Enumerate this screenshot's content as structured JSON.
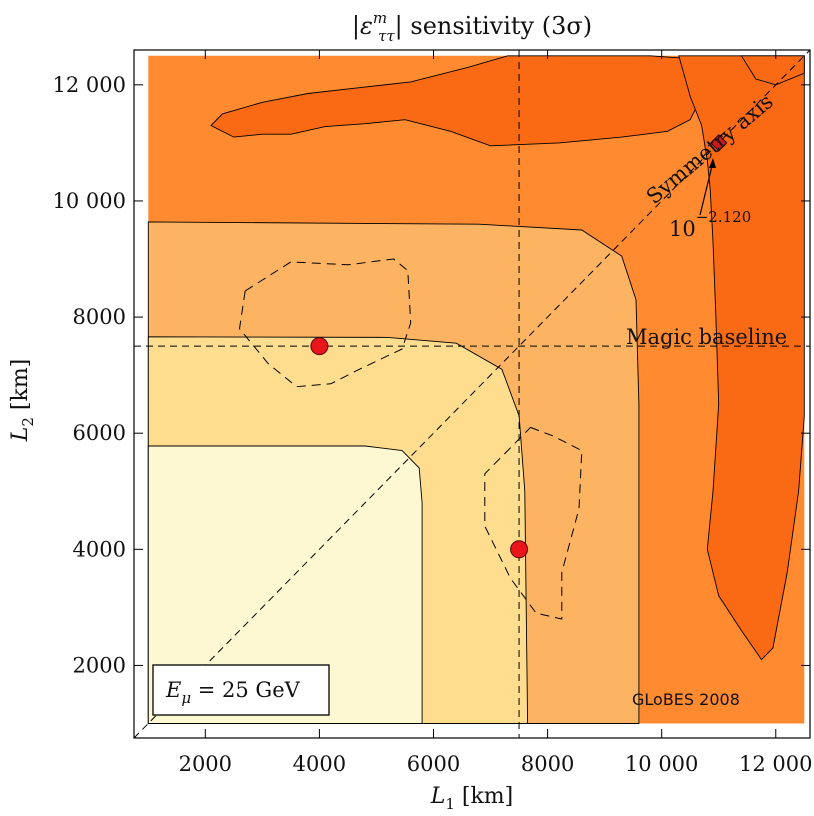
{
  "chart_data": {
    "type": "contour",
    "title": "|ε",
    "title_superscript": "m",
    "title_subscript": "ττ",
    "title_rest": "| sensitivity (3σ)",
    "xlabel": "L",
    "xlabel_sub": "1",
    "xlabel_unit": " [km]",
    "ylabel": "L",
    "ylabel_sub": "2",
    "ylabel_unit": " [km]",
    "xlim": [
      750,
      12600
    ],
    "ylim": [
      750,
      12600
    ],
    "data_extent": [
      1000,
      12500
    ],
    "x_ticks": [
      2000,
      4000,
      6000,
      8000,
      10000,
      12000
    ],
    "x_tick_labels": [
      "2000",
      "4000",
      "6000",
      "8000",
      "10 000",
      "12 000"
    ],
    "y_ticks": [
      2000,
      4000,
      6000,
      8000,
      10000,
      12000
    ],
    "y_tick_labels": [
      "2000",
      "4000",
      "6000",
      "8000",
      "10 000",
      "12 000"
    ],
    "contour_levels": [
      {
        "level": 1,
        "color": "#FDF8D2",
        "boundary": [
          [
            5800,
            1000
          ],
          [
            5800,
            4800
          ],
          [
            5750,
            5400
          ],
          [
            5450,
            5700
          ],
          [
            4800,
            5780
          ],
          [
            1000,
            5780
          ]
        ]
      },
      {
        "level": 2,
        "color": "#FEDE8E",
        "boundary": [
          [
            7650,
            1000
          ],
          [
            7600,
            5000
          ],
          [
            7500,
            6300
          ],
          [
            7200,
            7100
          ],
          [
            6400,
            7550
          ],
          [
            5200,
            7650
          ],
          [
            1000,
            7660
          ]
        ]
      },
      {
        "level": 3,
        "color": "#FCB362",
        "boundary": [
          [
            9600,
            1000
          ],
          [
            9600,
            6500
          ],
          [
            9550,
            8300
          ],
          [
            9300,
            9050
          ],
          [
            8600,
            9500
          ],
          [
            6800,
            9600
          ],
          [
            1000,
            9640
          ]
        ]
      },
      {
        "level": 4,
        "color": "#FF8A30",
        "boundary": [
          [
            12500,
            12500
          ],
          [
            1000,
            12500
          ],
          [
            1000,
            1000
          ],
          [
            12500,
            1000
          ]
        ]
      },
      {
        "level": 5,
        "color": "#FA6A14",
        "note": "upper-left tongue",
        "boundary": [
          [
            5500,
            11400
          ],
          [
            4800,
            11330
          ],
          [
            4100,
            11280
          ],
          [
            3500,
            11150
          ],
          [
            3000,
            11150
          ],
          [
            2500,
            11100
          ],
          [
            2100,
            11300
          ],
          [
            2300,
            11500
          ],
          [
            3000,
            11700
          ],
          [
            3800,
            11850
          ],
          [
            4700,
            11950
          ],
          [
            5600,
            12050
          ],
          [
            6600,
            12300
          ],
          [
            7300,
            12500
          ],
          [
            9800,
            12500
          ],
          [
            10500,
            12450
          ],
          [
            10700,
            12350
          ],
          [
            10650,
            11700
          ],
          [
            10500,
            11400
          ],
          [
            10100,
            11200
          ],
          [
            9300,
            11100
          ],
          [
            8200,
            11000
          ],
          [
            7000,
            10950
          ],
          [
            6300,
            11200
          ]
        ]
      },
      {
        "level": 5,
        "color": "#FA6A14",
        "note": "right-hand tongue",
        "boundary": [
          [
            10300,
            12500
          ],
          [
            10500,
            11800
          ],
          [
            10700,
            11300
          ],
          [
            10800,
            10700
          ],
          [
            10850,
            10200
          ],
          [
            10900,
            9300
          ],
          [
            10950,
            8000
          ],
          [
            11000,
            6500
          ],
          [
            10900,
            5000
          ],
          [
            10800,
            4000
          ],
          [
            11000,
            3200
          ],
          [
            11400,
            2600
          ],
          [
            11750,
            2100
          ],
          [
            11950,
            2300
          ],
          [
            12200,
            3600
          ],
          [
            12400,
            5000
          ],
          [
            12500,
            6300
          ],
          [
            12500,
            12500
          ]
        ]
      },
      {
        "level": 5,
        "color": "#FA6A14",
        "note": "top-right patch",
        "boundary": [
          [
            11400,
            12500
          ],
          [
            11650,
            12100
          ],
          [
            12000,
            12000
          ],
          [
            12500,
            12200
          ],
          [
            12500,
            12500
          ]
        ]
      }
    ],
    "dashed_regions": [
      [
        [
          2700,
          8450
        ],
        [
          3500,
          8950
        ],
        [
          4500,
          8900
        ],
        [
          5300,
          9000
        ],
        [
          5550,
          8800
        ],
        [
          5600,
          7900
        ],
        [
          5450,
          7450
        ],
        [
          4700,
          7100
        ],
        [
          4200,
          6850
        ],
        [
          3600,
          6800
        ],
        [
          3100,
          7200
        ],
        [
          2600,
          7800
        ],
        [
          2700,
          8450
        ]
      ],
      [
        [
          7700,
          6100
        ],
        [
          8100,
          5950
        ],
        [
          8600,
          5700
        ],
        [
          8550,
          4700
        ],
        [
          8250,
          3600
        ],
        [
          8250,
          2800
        ],
        [
          7800,
          2900
        ],
        [
          7350,
          3500
        ],
        [
          6900,
          4400
        ],
        [
          6900,
          5300
        ],
        [
          7300,
          5700
        ],
        [
          7700,
          6100
        ]
      ]
    ],
    "reference_lines": [
      {
        "orientation": "vertical",
        "x": 7500
      },
      {
        "orientation": "horizontal",
        "y": 7500
      },
      {
        "orientation": "diagonal",
        "from": [
          750,
          750
        ],
        "to": [
          12600,
          12600
        ]
      }
    ],
    "points": [
      {
        "x": 4000,
        "y": 7500,
        "marker": "circle",
        "color": "#E8161B"
      },
      {
        "x": 7500,
        "y": 4000,
        "marker": "circle",
        "color": "#E8161B"
      },
      {
        "x": 11000,
        "y": 11000,
        "marker": "diamond",
        "color": "#C81A1E"
      }
    ],
    "annotations": {
      "magic_baseline": "Magic baseline",
      "symmetry_axis": "Symmetry axis",
      "optimum_base": "10",
      "optimum_exponent": "−2.120",
      "legend_box": "E",
      "legend_sub": "μ",
      "legend_value": " = 25 GeV",
      "credit": "GLoBES 2008"
    }
  }
}
